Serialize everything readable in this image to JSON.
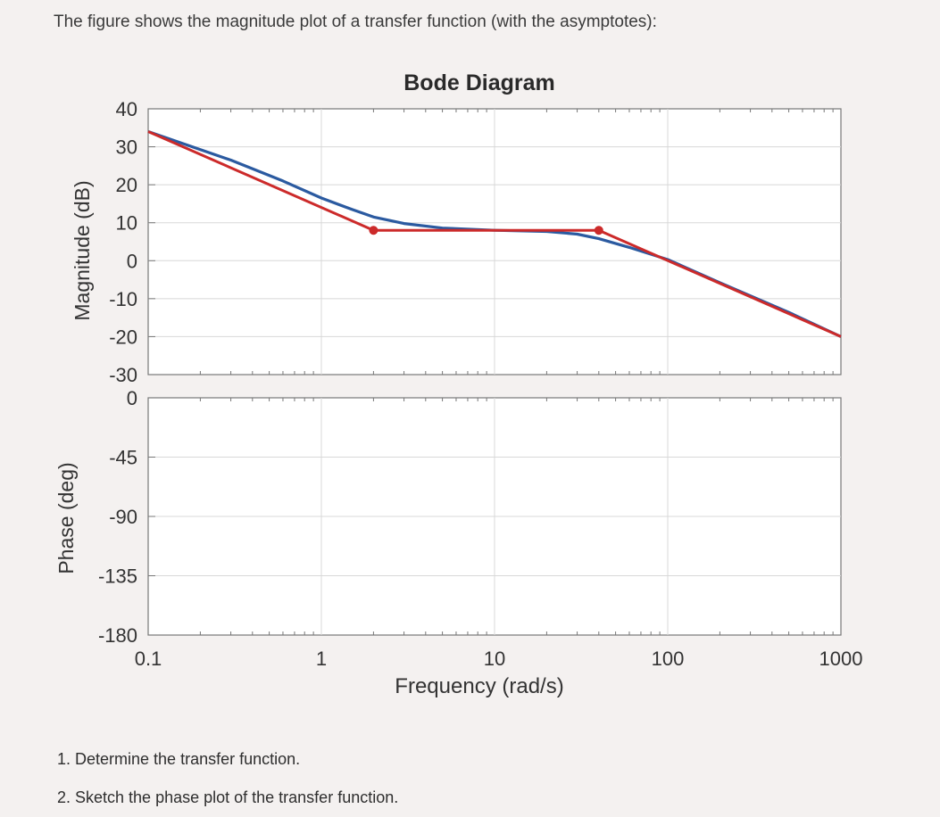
{
  "intro_text": "The figure shows the magnitude plot of a transfer function (with the asymptotes):",
  "questions": [
    "1. Determine the transfer function.",
    "2. Sketch the phase plot of the transfer function."
  ],
  "colors": {
    "actual_curve": "#2b5aa0",
    "asymptote": "#cc2a2a",
    "panel_bg": "#ffffff",
    "axis": "#777777",
    "grid": "#d8d8d8",
    "text": "#333333"
  },
  "chart_data": {
    "type": "line",
    "title": "Bode Diagram",
    "xlabel": "Frequency  (rad/s)",
    "x_scale": "log",
    "xlim": [
      0.1,
      1000
    ],
    "x_ticks": [
      0.1,
      1,
      10,
      100,
      1000
    ],
    "x_tick_labels": [
      "0.1",
      "1",
      "10",
      "100",
      "1000"
    ],
    "grid": true,
    "panels": [
      {
        "name": "magnitude",
        "ylabel": "Magnitude (dB)",
        "ylim": [
          -30,
          40
        ],
        "y_ticks": [
          40,
          30,
          20,
          10,
          0,
          -10,
          -20,
          -30
        ],
        "y_tick_labels": [
          "40",
          "30",
          "20",
          "10",
          "0",
          "-10",
          "-20",
          "-30"
        ],
        "series": [
          {
            "role": "actual",
            "x": [
              0.1,
              0.3,
              0.6,
              1,
              1.5,
              2,
              3,
              5,
              10,
              20,
              30,
              40,
              60,
              100,
              200,
              500,
              1000
            ],
            "y": [
              34,
              26.5,
              21,
              16.5,
              13.5,
              11.5,
              9.8,
              8.6,
              8,
              7.7,
              7,
              5.8,
              3.5,
              0.3,
              -5.8,
              -13.6,
              -20
            ]
          },
          {
            "role": "asymptote",
            "x": [
              0.1,
              2,
              40,
              1000
            ],
            "y": [
              34,
              8,
              8,
              -20
            ],
            "breakpoints": [
              {
                "x": 2,
                "y": 8
              },
              {
                "x": 40,
                "y": 8
              }
            ]
          }
        ]
      },
      {
        "name": "phase",
        "ylabel": "Phase (deg)",
        "ylim": [
          -180,
          0
        ],
        "y_ticks": [
          0,
          -45,
          -90,
          -135,
          -180
        ],
        "y_tick_labels": [
          "0",
          "-45",
          "-90",
          "-135",
          "-180"
        ],
        "series": []
      }
    ]
  }
}
